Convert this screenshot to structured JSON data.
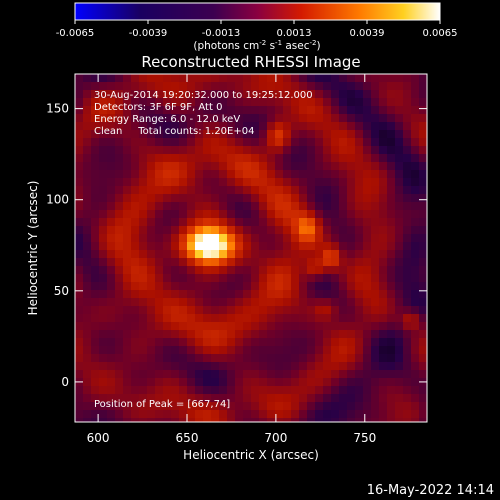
{
  "chart_data": {
    "type": "heatmap",
    "title": "Reconstructed RHESSI Image",
    "xlabel": "Heliocentric X (arcsec)",
    "ylabel": "Heliocentric Y (arcsec)",
    "xlim": [
      587,
      785
    ],
    "ylim": [
      -22,
      169
    ],
    "x_ticks": [
      600,
      650,
      700,
      750
    ],
    "y_ticks": [
      0,
      50,
      100,
      150
    ],
    "colorbar": {
      "min": -0.0065,
      "max": 0.0065,
      "tick_labels": [
        "-0.0065",
        "-0.0039",
        "-0.0013",
        "0.0013",
        "0.0039",
        "0.0065"
      ],
      "tick_values": [
        -0.0065,
        -0.0039,
        -0.0013,
        0.0013,
        0.0039,
        0.0065
      ],
      "units_label": "(photons cm",
      "units_exp1": "-2",
      "units_mid": " s",
      "units_exp2": "-1",
      "units_end": " asec",
      "units_exp3": "-2",
      "units_close": ")"
    },
    "annotations": [
      "30-Aug-2014 19:20:32.000 to 19:25:12.000",
      "Detectors: 3F 6F 9F, Att 0",
      "Energy Range: 6.0 - 12.0 keV",
      "Clean     Total counts: 1.20E+04"
    ],
    "peak_label": "Position of Peak = [667,74]",
    "sources": [
      {
        "x": 662,
        "y": 75,
        "intensity": 1.0,
        "sx": 10,
        "sy": 7
      },
      {
        "x": 701,
        "y": 135,
        "intensity": 0.55,
        "sx": 5,
        "sy": 6
      },
      {
        "x": 718,
        "y": 85,
        "intensity": 0.45,
        "sx": 5,
        "sy": 6
      },
      {
        "x": 731,
        "y": 68,
        "intensity": 0.55,
        "sx": 4,
        "sy": 5
      },
      {
        "x": 722,
        "y": 62,
        "intensity": 0.4,
        "sx": 4,
        "sy": 4
      },
      {
        "x": 776,
        "y": 34,
        "intensity": 0.4,
        "sx": 4,
        "sy": 4
      },
      {
        "x": 728,
        "y": 40,
        "intensity": 0.3,
        "sx": 5,
        "sy": 4
      }
    ]
  },
  "footer": {
    "timestamp": "16-May-2022 14:14"
  }
}
